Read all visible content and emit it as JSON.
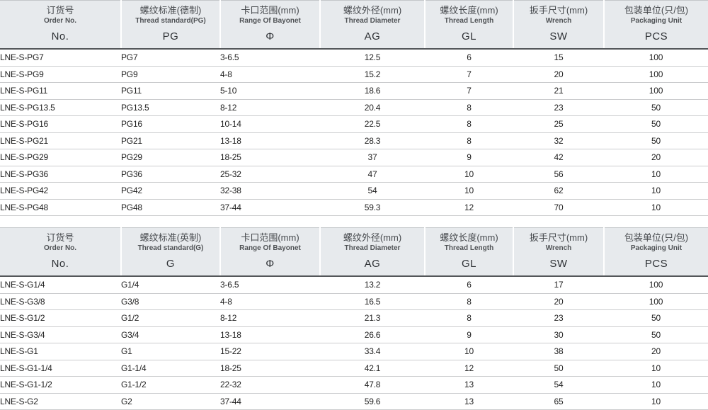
{
  "colors": {
    "header_bg": "#e7eaed",
    "header_dark_rule": "#54575a",
    "row_rule": "#cbccce",
    "header_divider": "#ffffff"
  },
  "tables": [
    {
      "id": "pg-thread-table",
      "columns": [
        {
          "key": "order-no",
          "zh": "订货号",
          "en": "Order No.",
          "code": "No."
        },
        {
          "key": "thread-standard",
          "zh": "螺纹标准(德制)",
          "en": "Thread standard(PG)",
          "code": "PG"
        },
        {
          "key": "bayonet-range",
          "zh": "卡口范围(mm)",
          "en": "Range Of Bayonet",
          "code": "Φ"
        },
        {
          "key": "thread-diameter",
          "zh": "螺纹外径(mm)",
          "en": "Thread Diameter",
          "code": "AG"
        },
        {
          "key": "thread-length",
          "zh": "螺纹长度(mm)",
          "en": "Thread Length",
          "code": "GL"
        },
        {
          "key": "wrench",
          "zh": "扳手尺寸(mm)",
          "en": "Wrench",
          "code": "SW"
        },
        {
          "key": "packaging",
          "zh": "包装单位(只/包)",
          "en": "Packaging Unit",
          "code": "PCS"
        }
      ],
      "rows": [
        [
          "LNE-S-PG7",
          "PG7",
          "3-6.5",
          "12.5",
          "6",
          "15",
          "100"
        ],
        [
          "LNE-S-PG9",
          "PG9",
          "4-8",
          "15.2",
          "7",
          "20",
          "100"
        ],
        [
          "LNE-S-PG11",
          "PG11",
          "5-10",
          "18.6",
          "7",
          "21",
          "100"
        ],
        [
          "LNE-S-PG13.5",
          "PG13.5",
          "8-12",
          "20.4",
          "8",
          "23",
          "50"
        ],
        [
          "LNE-S-PG16",
          "PG16",
          "10-14",
          "22.5",
          "8",
          "25",
          "50"
        ],
        [
          "LNE-S-PG21",
          "PG21",
          "13-18",
          "28.3",
          "8",
          "32",
          "50"
        ],
        [
          "LNE-S-PG29",
          "PG29",
          "18-25",
          "37",
          "9",
          "42",
          "20"
        ],
        [
          "LNE-S-PG36",
          "PG36",
          "25-32",
          "47",
          "10",
          "56",
          "10"
        ],
        [
          "LNE-S-PG42",
          "PG42",
          "32-38",
          "54",
          "10",
          "62",
          "10"
        ],
        [
          "LNE-S-PG48",
          "PG48",
          "37-44",
          "59.3",
          "12",
          "70",
          "10"
        ]
      ]
    },
    {
      "id": "g-thread-table",
      "columns": [
        {
          "key": "order-no",
          "zh": "订货号",
          "en": "Order No.",
          "code": "No."
        },
        {
          "key": "thread-standard",
          "zh": "螺纹标准(英制)",
          "en": "Thread standard(G)",
          "code": "G"
        },
        {
          "key": "bayonet-range",
          "zh": "卡口范围(mm)",
          "en": "Range Of Bayonet",
          "code": "Φ"
        },
        {
          "key": "thread-diameter",
          "zh": "螺纹外径(mm)",
          "en": "Thread Diameter",
          "code": "AG"
        },
        {
          "key": "thread-length",
          "zh": "螺纹长度(mm)",
          "en": "Thread Length",
          "code": "GL"
        },
        {
          "key": "wrench",
          "zh": "扳手尺寸(mm)",
          "en": "Wrench",
          "code": "SW"
        },
        {
          "key": "packaging",
          "zh": "包装单位(只/包)",
          "en": "Packaging Unit",
          "code": "PCS"
        }
      ],
      "rows": [
        [
          "LNE-S-G1/4",
          "G1/4",
          "3-6.5",
          "13.2",
          "6",
          "17",
          "100"
        ],
        [
          "LNE-S-G3/8",
          "G3/8",
          "4-8",
          "16.5",
          "8",
          "20",
          "100"
        ],
        [
          "LNE-S-G1/2",
          "G1/2",
          "8-12",
          "21.3",
          "8",
          "23",
          "50"
        ],
        [
          "LNE-S-G3/4",
          "G3/4",
          "13-18",
          "26.6",
          "9",
          "30",
          "50"
        ],
        [
          "LNE-S-G1",
          "G1",
          "15-22",
          "33.4",
          "10",
          "38",
          "20"
        ],
        [
          "LNE-S-G1-1/4",
          "G1-1/4",
          "18-25",
          "42.1",
          "12",
          "50",
          "10"
        ],
        [
          "LNE-S-G1-1/2",
          "G1-1/2",
          "22-32",
          "47.8",
          "13",
          "54",
          "10"
        ],
        [
          "LNE-S-G2",
          "G2",
          "37-44",
          "59.6",
          "13",
          "65",
          "10"
        ]
      ]
    }
  ]
}
